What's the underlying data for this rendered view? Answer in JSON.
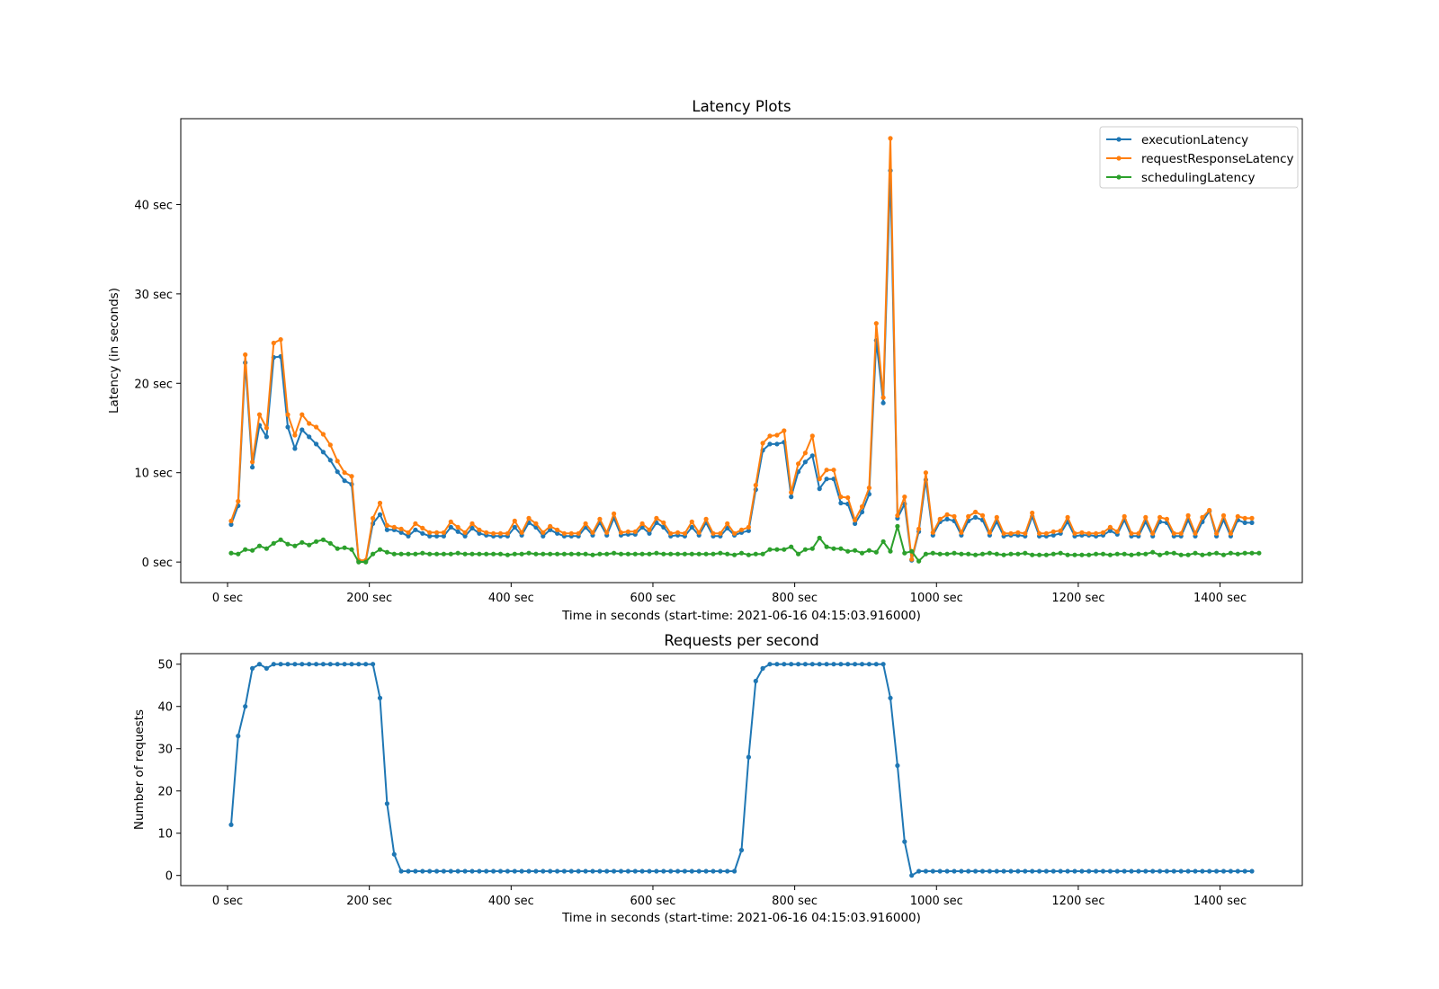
{
  "colors": {
    "executionLatency": "#1f77b4",
    "requestResponseLatency": "#ff7f0e",
    "schedulingLatency": "#2ca02c",
    "requests": "#1f77b4"
  },
  "chart_data": [
    {
      "type": "line",
      "title": "Latency Plots",
      "xlabel": "Time in seconds (start-time: 2021-06-16 04:15:03.916000)",
      "ylabel": "Latency (in seconds)",
      "xlim": [
        -66,
        1516
      ],
      "ylim": [
        -2.3,
        49.6
      ],
      "xticks": [
        0,
        200,
        400,
        600,
        800,
        1000,
        1200,
        1400
      ],
      "xtick_labels": [
        "0 sec",
        "200 sec",
        "400 sec",
        "600 sec",
        "800 sec",
        "1000 sec",
        "1200 sec",
        "1400 sec"
      ],
      "yticks": [
        0,
        10,
        20,
        30,
        40
      ],
      "ytick_labels": [
        "0 sec",
        "10 sec",
        "20 sec",
        "30 sec",
        "40 sec"
      ],
      "legend_position": "top-right",
      "x_start": 5,
      "x_step": 10,
      "series": [
        {
          "name": "executionLatency",
          "values": [
            4.2,
            6.3,
            22.3,
            10.6,
            15.3,
            14.0,
            22.9,
            23.0,
            15.1,
            12.7,
            14.8,
            14.0,
            13.2,
            12.3,
            11.4,
            10.1,
            9.1,
            8.7,
            0.1,
            0.1,
            4.3,
            5.3,
            3.6,
            3.6,
            3.3,
            2.9,
            3.6,
            3.2,
            2.9,
            2.9,
            2.9,
            3.9,
            3.4,
            2.9,
            3.8,
            3.2,
            3.0,
            2.9,
            2.9,
            2.9,
            3.9,
            3.0,
            4.4,
            3.9,
            2.9,
            3.6,
            3.2,
            2.9,
            2.9,
            2.9,
            3.9,
            3.0,
            4.4,
            3.0,
            4.9,
            3.0,
            3.1,
            3.1,
            3.9,
            3.2,
            4.4,
            3.9,
            2.9,
            3.0,
            2.9,
            3.9,
            3.0,
            4.4,
            2.9,
            2.9,
            3.8,
            3.0,
            3.3,
            3.5,
            8.1,
            12.5,
            13.2,
            13.2,
            13.4,
            7.3,
            10.1,
            11.2,
            11.9,
            8.2,
            9.3,
            9.3,
            6.6,
            6.5,
            4.3,
            5.6,
            7.6,
            24.8,
            17.8,
            43.8,
            4.9,
            6.5,
            0.2,
            3.4,
            9.2,
            3.0,
            4.5,
            4.8,
            4.6,
            3.0,
            4.6,
            5.0,
            4.7,
            3.0,
            4.5,
            2.9,
            3.0,
            3.0,
            2.9,
            5.1,
            2.9,
            2.9,
            3.0,
            3.2,
            4.5,
            2.9,
            3.0,
            3.0,
            2.9,
            3.0,
            3.5,
            3.1,
            4.7,
            2.9,
            2.9,
            4.5,
            2.9,
            4.5,
            4.4,
            2.9,
            2.9,
            4.7,
            2.9,
            4.5,
            5.7,
            2.9,
            4.7,
            2.9,
            4.7,
            4.4,
            4.4
          ]
        },
        {
          "name": "requestResponseLatency",
          "values": [
            4.6,
            6.8,
            23.2,
            11.2,
            16.5,
            15.0,
            24.5,
            24.9,
            16.5,
            14.2,
            16.5,
            15.5,
            15.1,
            14.3,
            13.1,
            11.3,
            10.0,
            9.6,
            0.2,
            0.2,
            4.9,
            6.6,
            4.1,
            3.9,
            3.7,
            3.3,
            4.3,
            3.8,
            3.3,
            3.3,
            3.3,
            4.5,
            3.9,
            3.3,
            4.3,
            3.6,
            3.3,
            3.2,
            3.2,
            3.2,
            4.6,
            3.3,
            4.9,
            4.3,
            3.3,
            4.0,
            3.6,
            3.2,
            3.2,
            3.2,
            4.3,
            3.3,
            4.8,
            3.3,
            5.4,
            3.3,
            3.4,
            3.4,
            4.3,
            3.6,
            4.9,
            4.4,
            3.2,
            3.3,
            3.2,
            4.5,
            3.3,
            4.8,
            3.2,
            3.2,
            4.3,
            3.2,
            3.6,
            3.9,
            8.6,
            13.3,
            14.1,
            14.2,
            14.7,
            7.8,
            11.0,
            12.2,
            14.1,
            9.3,
            10.3,
            10.3,
            7.3,
            7.2,
            4.7,
            6.2,
            8.3,
            26.7,
            18.4,
            47.4,
            5.2,
            7.3,
            0.3,
            3.7,
            10.0,
            3.3,
            4.8,
            5.3,
            5.1,
            3.3,
            5.1,
            5.6,
            5.2,
            3.3,
            5.0,
            3.2,
            3.2,
            3.3,
            3.2,
            5.5,
            3.2,
            3.2,
            3.4,
            3.5,
            5.0,
            3.2,
            3.3,
            3.2,
            3.2,
            3.3,
            3.9,
            3.4,
            5.1,
            3.2,
            3.2,
            5.0,
            3.2,
            5.0,
            4.8,
            3.2,
            3.2,
            5.2,
            3.2,
            5.0,
            5.8,
            3.2,
            5.2,
            3.2,
            5.1,
            4.9,
            4.9
          ]
        },
        {
          "name": "schedulingLatency",
          "values": [
            1.0,
            0.9,
            1.4,
            1.3,
            1.8,
            1.5,
            2.1,
            2.5,
            2.0,
            1.8,
            2.2,
            1.9,
            2.3,
            2.5,
            2.1,
            1.5,
            1.6,
            1.4,
            0.0,
            0.0,
            0.9,
            1.4,
            1.1,
            0.9,
            0.9,
            0.9,
            0.9,
            1.0,
            0.9,
            0.9,
            0.9,
            0.9,
            1.0,
            0.9,
            0.9,
            0.9,
            0.9,
            0.9,
            0.9,
            0.8,
            0.9,
            0.9,
            1.0,
            0.9,
            0.9,
            0.9,
            0.9,
            0.9,
            0.9,
            0.9,
            0.9,
            0.8,
            0.9,
            0.9,
            1.0,
            0.9,
            0.9,
            0.9,
            0.9,
            0.9,
            1.0,
            0.9,
            0.9,
            0.9,
            0.9,
            0.9,
            0.9,
            0.9,
            0.9,
            1.0,
            0.9,
            0.8,
            1.0,
            0.8,
            0.9,
            0.9,
            1.4,
            1.4,
            1.4,
            1.7,
            0.9,
            1.4,
            1.5,
            2.7,
            1.7,
            1.5,
            1.5,
            1.2,
            1.3,
            1.0,
            1.3,
            1.1,
            2.3,
            1.2,
            4.0,
            1.0,
            1.2,
            0.1,
            0.9,
            1.0,
            0.9,
            0.9,
            1.0,
            0.9,
            0.9,
            0.8,
            0.9,
            1.0,
            0.9,
            0.8,
            0.9,
            0.9,
            1.0,
            0.8,
            0.8,
            0.8,
            0.9,
            1.0,
            0.8,
            0.8,
            0.8,
            0.8,
            0.9,
            0.9,
            0.8,
            0.9,
            0.9,
            0.8,
            0.9,
            0.9,
            1.1,
            0.8,
            1.0,
            1.0,
            0.8,
            0.8,
            1.0,
            0.8,
            0.9,
            1.0,
            0.8,
            1.0,
            0.9,
            1.0,
            1.0,
            1.0
          ]
        }
      ]
    },
    {
      "type": "line",
      "title": "Requests per second",
      "xlabel": "Time in seconds (start-time: 2021-06-16 04:15:03.916000)",
      "ylabel": "Number of requests",
      "xlim": [
        -66,
        1516
      ],
      "ylim": [
        -2.4,
        52.5
      ],
      "xticks": [
        0,
        200,
        400,
        600,
        800,
        1000,
        1200,
        1400
      ],
      "xtick_labels": [
        "0 sec",
        "200 sec",
        "400 sec",
        "600 sec",
        "800 sec",
        "1000 sec",
        "1200 sec",
        "1400 sec"
      ],
      "yticks": [
        0,
        10,
        20,
        30,
        40,
        50
      ],
      "ytick_labels": [
        "0",
        "10",
        "20",
        "30",
        "40",
        "50"
      ],
      "x_start": 5,
      "x_step": 10,
      "series": [
        {
          "name": "",
          "values": [
            12,
            33,
            40,
            49,
            50,
            49,
            50,
            50,
            50,
            50,
            50,
            50,
            50,
            50,
            50,
            50,
            50,
            50,
            50,
            50,
            50,
            42,
            17,
            5,
            1,
            1,
            1,
            1,
            1,
            1,
            1,
            1,
            1,
            1,
            1,
            1,
            1,
            1,
            1,
            1,
            1,
            1,
            1,
            1,
            1,
            1,
            1,
            1,
            1,
            1,
            1,
            1,
            1,
            1,
            1,
            1,
            1,
            1,
            1,
            1,
            1,
            1,
            1,
            1,
            1,
            1,
            1,
            1,
            1,
            1,
            1,
            1,
            6,
            28,
            46,
            49,
            50,
            50,
            50,
            50,
            50,
            50,
            50,
            50,
            50,
            50,
            50,
            50,
            50,
            50,
            50,
            50,
            50,
            42,
            26,
            8,
            0,
            1,
            1,
            1,
            1,
            1,
            1,
            1,
            1,
            1,
            1,
            1,
            1,
            1,
            1,
            1,
            1,
            1,
            1,
            1,
            1,
            1,
            1,
            1,
            1,
            1,
            1,
            1,
            1,
            1,
            1,
            1,
            1,
            1,
            1,
            1,
            1,
            1,
            1,
            1,
            1,
            1,
            1,
            1,
            1,
            1,
            1,
            1,
            1
          ]
        }
      ]
    }
  ]
}
